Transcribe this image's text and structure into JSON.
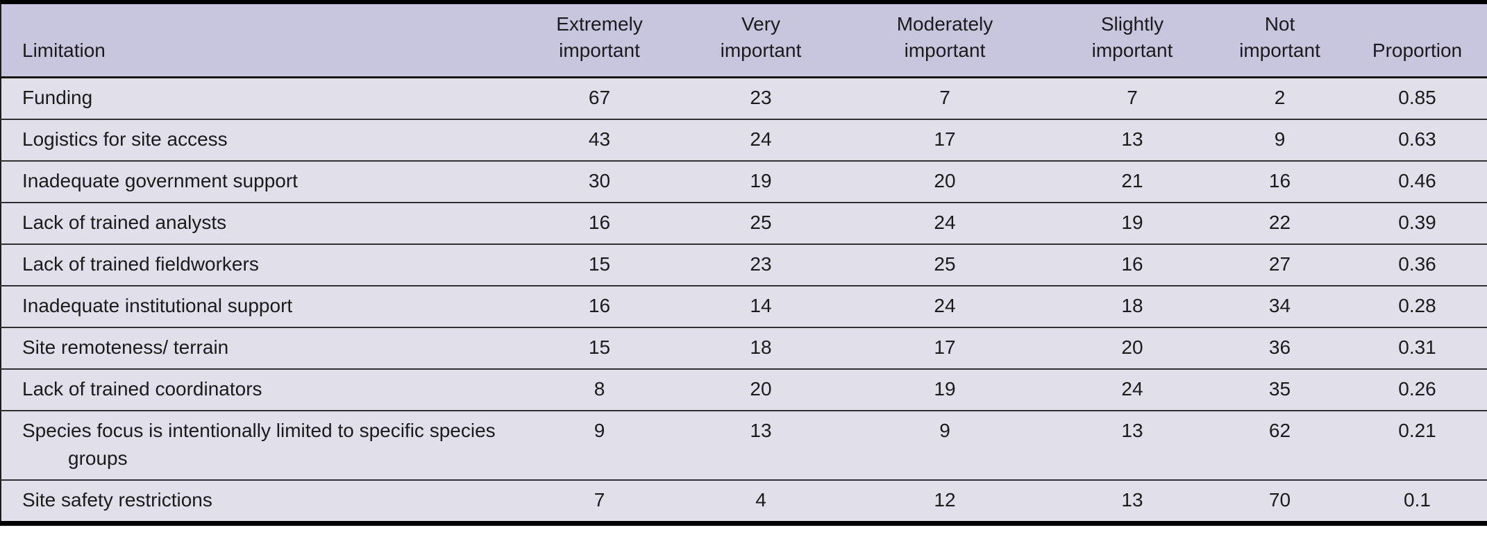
{
  "table": {
    "header_labels": [
      "Limitation",
      "Extremely\nimportant",
      "Very\nimportant",
      "Moderately\nimportant",
      "Slightly\nimportant",
      "Not\nimportant",
      "Proportion"
    ]
  },
  "chart_data": {
    "type": "table",
    "columns": [
      "Limitation",
      "Extremely important",
      "Very important",
      "Moderately important",
      "Slightly important",
      "Not important",
      "Proportion"
    ],
    "rows": [
      [
        "Funding",
        "67",
        "23",
        "7",
        "7",
        "2",
        "0.85"
      ],
      [
        "Logistics for site access",
        "43",
        "24",
        "17",
        "13",
        "9",
        "0.63"
      ],
      [
        "Inadequate government support",
        "30",
        "19",
        "20",
        "21",
        "16",
        "0.46"
      ],
      [
        "Lack of trained analysts",
        "16",
        "25",
        "24",
        "19",
        "22",
        "0.39"
      ],
      [
        "Lack of trained fieldworkers",
        "15",
        "23",
        "25",
        "16",
        "27",
        "0.36"
      ],
      [
        "Inadequate institutional support",
        "16",
        "14",
        "24",
        "18",
        "34",
        "0.28"
      ],
      [
        "Site remoteness/ terrain",
        "15",
        "18",
        "17",
        "20",
        "36",
        "0.31"
      ],
      [
        "Lack of trained coordinators",
        "8",
        "20",
        "19",
        "24",
        "35",
        "0.26"
      ],
      [
        "Species focus is intentionally limited to specific species groups",
        "9",
        "13",
        "9",
        "13",
        "62",
        "0.21"
      ],
      [
        "Site safety restrictions",
        "7",
        "4",
        "12",
        "13",
        "70",
        "0.1"
      ]
    ]
  },
  "colors": {
    "header_bg": "#c8c6de",
    "row_bg": "#e1dfea",
    "rule_heavy": "#000000",
    "rule_light": "#303030",
    "text": "#1b1b1b"
  }
}
